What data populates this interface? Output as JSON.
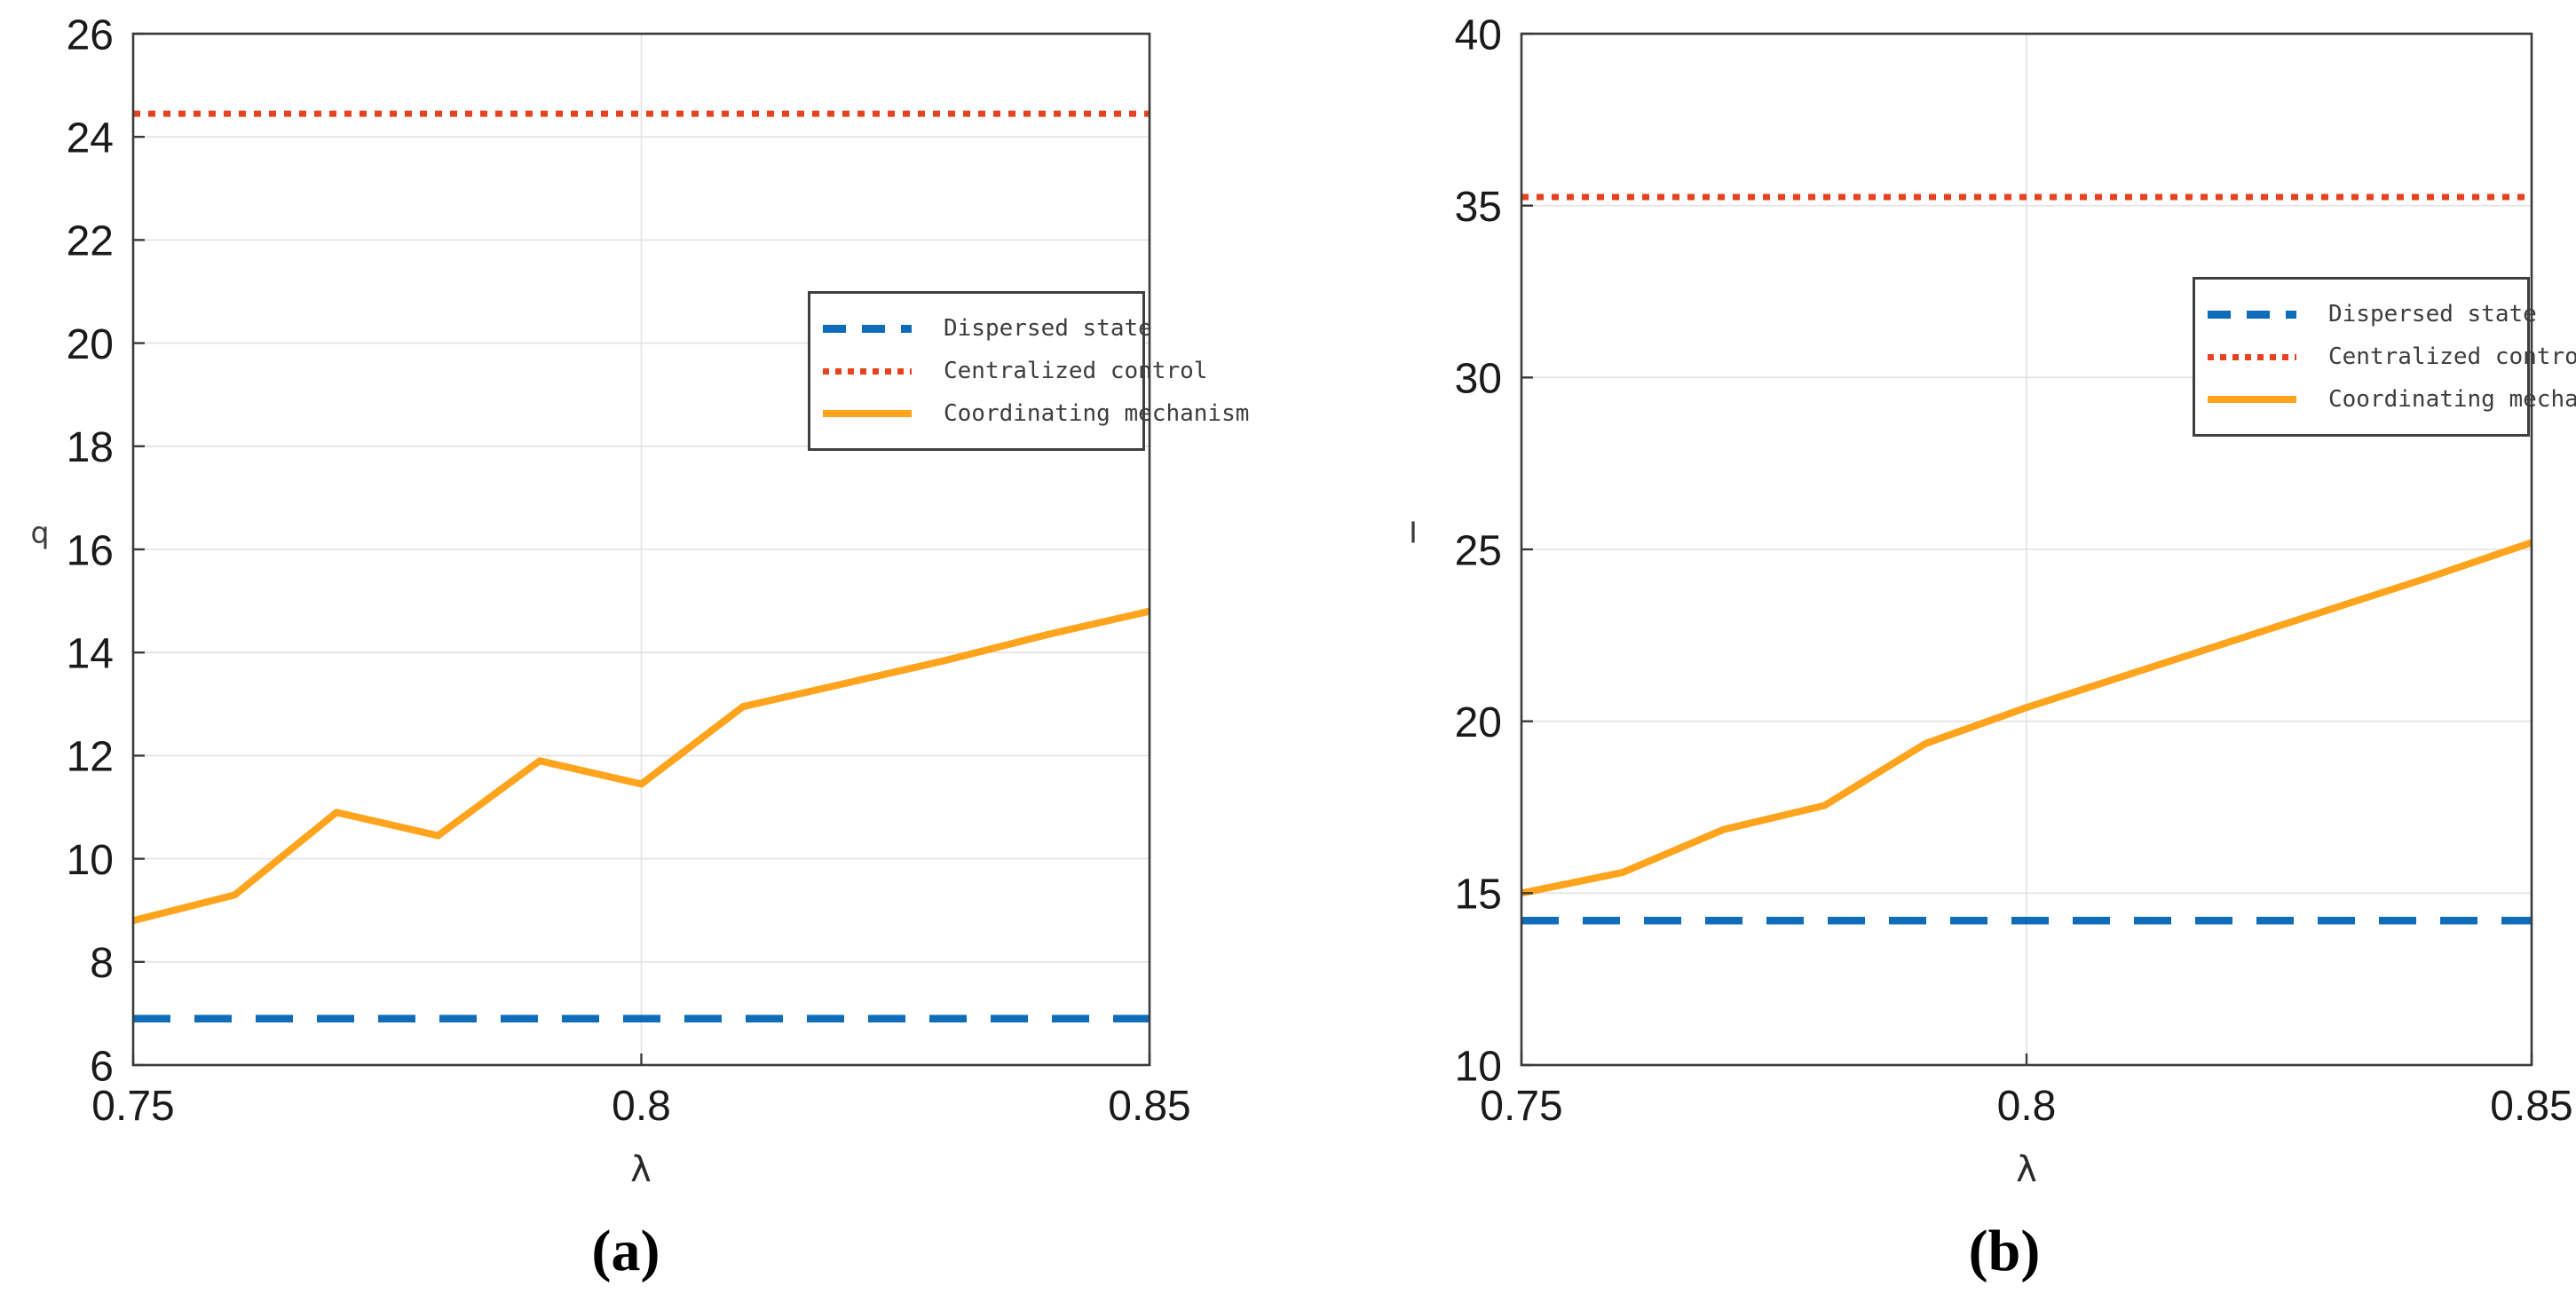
{
  "figure": {
    "background": "#ffffff",
    "captions": {
      "a": "(a)",
      "b": "(b)"
    }
  },
  "colors": {
    "dispersed_blue": "#0e6cb8",
    "centralized_red": "#e5431f",
    "coordinating_orange": "#ffa41c",
    "grid": "#e2e2e2",
    "axis": "#3b3b3b",
    "tick_text": "#1a1a1a"
  },
  "legend": {
    "position": "upper right inset",
    "items": [
      {
        "label": "Dispersed state",
        "color": "#0e6cb8",
        "style": "dashed"
      },
      {
        "label": "Centralized control",
        "color": "#e5431f",
        "style": "dotted"
      },
      {
        "label": "Coordinating mechanism",
        "color": "#ffa41c",
        "style": "solid"
      }
    ]
  },
  "chart_data": [
    {
      "id": "a",
      "type": "line",
      "caption": "(a)",
      "xlabel": "λ",
      "ylabel": "q",
      "xlim": [
        0.75,
        0.85
      ],
      "ylim": [
        6,
        26
      ],
      "xticks": [
        0.75,
        0.8,
        0.85
      ],
      "xtick_labels": [
        "0.75",
        "0.8",
        "0.85"
      ],
      "yticks": [
        6,
        8,
        10,
        12,
        14,
        16,
        18,
        20,
        22,
        24,
        26
      ],
      "grid": true,
      "x": [
        0.75,
        0.76,
        0.77,
        0.78,
        0.79,
        0.8,
        0.81,
        0.82,
        0.83,
        0.84,
        0.85
      ],
      "series": [
        {
          "name": "Dispersed state",
          "style": "dashed",
          "color": "#0e6cb8",
          "values": 6.9
        },
        {
          "name": "Centralized control",
          "style": "dotted",
          "color": "#e5431f",
          "values": 24.45
        },
        {
          "name": "Coordinating mechanism",
          "style": "solid",
          "color": "#ffa41c",
          "values": [
            8.8,
            9.3,
            10.9,
            10.45,
            11.9,
            11.45,
            12.95,
            13.4,
            13.85,
            14.35,
            14.8
          ]
        }
      ]
    },
    {
      "id": "b",
      "type": "line",
      "caption": "(b)",
      "xlabel": "λ",
      "ylabel": "I",
      "xlim": [
        0.75,
        0.85
      ],
      "ylim": [
        10,
        40
      ],
      "xticks": [
        0.75,
        0.8,
        0.85
      ],
      "xtick_labels": [
        "0.75",
        "0.8",
        "0.85"
      ],
      "yticks": [
        10,
        15,
        20,
        25,
        30,
        35,
        40
      ],
      "grid": true,
      "x": [
        0.75,
        0.76,
        0.77,
        0.78,
        0.79,
        0.8,
        0.81,
        0.82,
        0.83,
        0.84,
        0.85
      ],
      "series": [
        {
          "name": "Dispersed state",
          "style": "dashed",
          "color": "#0e6cb8",
          "values": 14.2
        },
        {
          "name": "Centralized control",
          "style": "dotted",
          "color": "#e5431f",
          "values": 35.25
        },
        {
          "name": "Coordinating mechanism",
          "style": "solid",
          "color": "#ffa41c",
          "values": [
            15.0,
            15.6,
            16.85,
            17.55,
            19.35,
            20.4,
            21.35,
            22.3,
            23.25,
            24.2,
            25.2
          ]
        }
      ]
    }
  ]
}
